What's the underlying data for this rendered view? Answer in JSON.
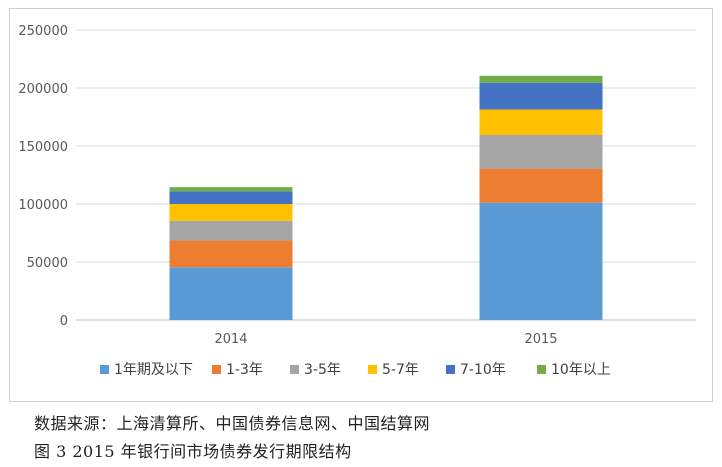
{
  "chart_data": {
    "type": "bar",
    "stacked": true,
    "title": "",
    "xlabel": "",
    "ylabel": "",
    "categories": [
      "2014",
      "2015"
    ],
    "ylim": [
      0,
      250000
    ],
    "yticks": [
      "0",
      "50000",
      "100000",
      "150000",
      "200000",
      "250000"
    ],
    "grid": true,
    "legend_position": "bottom",
    "series": [
      {
        "name": "1年期及以下",
        "color": "#5b9bd5",
        "values": [
          45500,
          101000
        ]
      },
      {
        "name": "1-3年",
        "color": "#ed7d31",
        "values": [
          23000,
          29500
        ]
      },
      {
        "name": "3-5年",
        "color": "#a5a5a5",
        "values": [
          17000,
          29000
        ]
      },
      {
        "name": "5-7年",
        "color": "#ffc000",
        "values": [
          14500,
          22000
        ]
      },
      {
        "name": "7-10年",
        "color": "#4472c4",
        "values": [
          11000,
          23000
        ]
      },
      {
        "name": "10年以上",
        "color": "#70ad47",
        "values": [
          3500,
          6000
        ]
      }
    ]
  },
  "captions": {
    "source": "数据来源：上海清算所、中国债券信息网、中国结算网",
    "figure": "图 3   2015 年银行间市场债券发行期限结构"
  }
}
